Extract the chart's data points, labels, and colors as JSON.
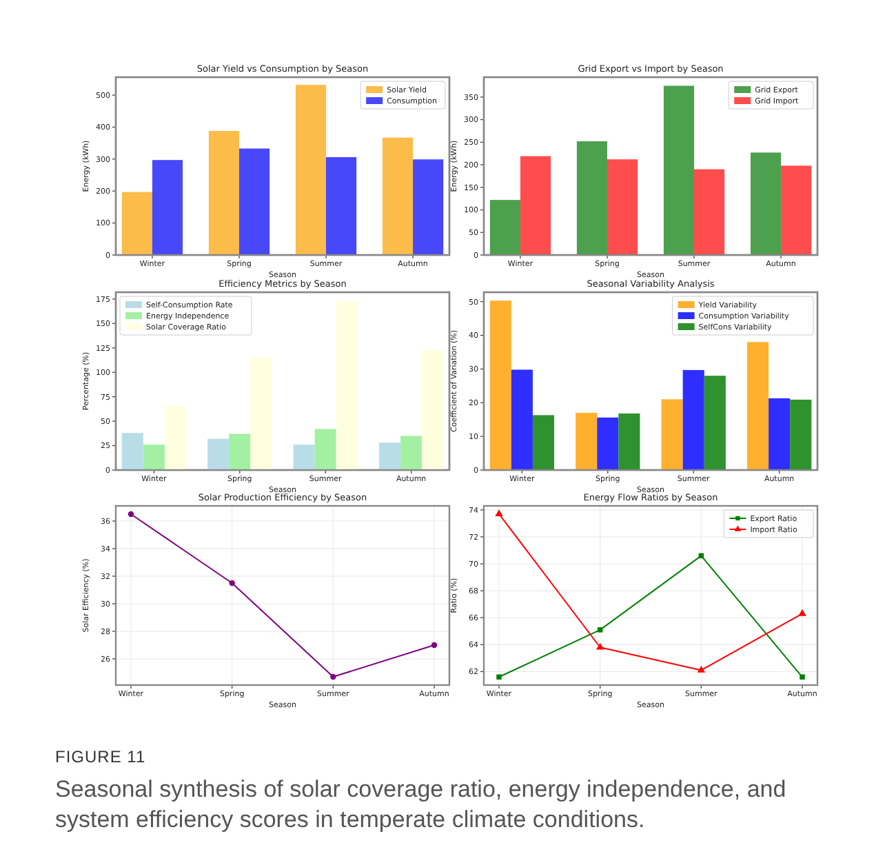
{
  "chart_data": [
    {
      "type": "bar",
      "title": "Solar Yield vs Consumption by Season",
      "xlabel": "Season",
      "ylabel": "Energy (kWh)",
      "categories": [
        "Winter",
        "Spring",
        "Summer",
        "Autumn"
      ],
      "ylim": [
        0,
        556
      ],
      "yticks": [
        0,
        100,
        200,
        300,
        400,
        500
      ],
      "legend": "top right",
      "series": [
        {
          "name": "Solar Yield",
          "color": "#fbbc4a",
          "values": [
            197,
            388,
            532,
            367
          ]
        },
        {
          "name": "Consumption",
          "color": "#4848fb",
          "values": [
            297,
            333,
            306,
            299
          ]
        }
      ]
    },
    {
      "type": "bar",
      "title": "Grid Export vs Import by Season",
      "xlabel": "Season",
      "ylabel": "Energy (kWh)",
      "categories": [
        "Winter",
        "Spring",
        "Summer",
        "Autumn"
      ],
      "ylim": [
        0,
        394
      ],
      "yticks": [
        0,
        50,
        100,
        150,
        200,
        250,
        300,
        350
      ],
      "legend": "top right",
      "series": [
        {
          "name": "Grid Export",
          "color": "#4da04d",
          "values": [
            122,
            252,
            375,
            227
          ]
        },
        {
          "name": "Grid Import",
          "color": "#ff4d4d",
          "values": [
            219,
            212,
            190,
            198
          ]
        }
      ]
    },
    {
      "type": "bar",
      "title": "Efficiency Metrics by Season",
      "xlabel": "Season",
      "ylabel": "Percentage (%)",
      "categories": [
        "Winter",
        "Spring",
        "Summer",
        "Autumn"
      ],
      "ylim": [
        0,
        182
      ],
      "yticks": [
        0,
        25,
        50,
        75,
        100,
        125,
        150,
        175
      ],
      "legend": "top left",
      "series": [
        {
          "name": "Self-Consumption Rate",
          "color": "#b9dde8",
          "values": [
            38,
            32,
            26,
            28
          ]
        },
        {
          "name": "Energy Independence",
          "color": "#a3f0a3",
          "values": [
            26,
            37,
            42,
            35
          ]
        },
        {
          "name": "Solar Coverage Ratio",
          "color": "#ffffe0",
          "values": [
            66,
            115,
            173,
            123
          ]
        }
      ]
    },
    {
      "type": "bar",
      "title": "Seasonal Variability Analysis",
      "xlabel": "Season",
      "ylabel": "Coefficient of Variation (%)",
      "categories": [
        "Winter",
        "Spring",
        "Summer",
        "Autumn"
      ],
      "ylim": [
        0,
        52.8
      ],
      "yticks": [
        0,
        10,
        20,
        30,
        40,
        50
      ],
      "legend": "top right",
      "series": [
        {
          "name": "Yield Variability",
          "color": "#ffb02e",
          "values": [
            50.3,
            17,
            21,
            38
          ]
        },
        {
          "name": "Consumption Variability",
          "color": "#2e2eff",
          "values": [
            29.8,
            15.6,
            29.7,
            21.3
          ]
        },
        {
          "name": "SelfCons Variability",
          "color": "#2e922e",
          "values": [
            16.3,
            16.8,
            28,
            20.9
          ]
        }
      ]
    },
    {
      "type": "line",
      "title": "Solar Production Efficiency by Season",
      "xlabel": "Season",
      "ylabel": "Solar Efficiency (%)",
      "categories": [
        "Winter",
        "Spring",
        "Summer",
        "Autumn"
      ],
      "ylim": [
        24.1,
        37.1
      ],
      "yticks": [
        26,
        28,
        30,
        32,
        34,
        36
      ],
      "grid": true,
      "marker": "circle",
      "line_style": "solid",
      "series": [
        {
          "color": "#800080",
          "values": [
            36.5,
            31.5,
            24.7,
            27
          ]
        }
      ]
    },
    {
      "type": "line",
      "title": "Energy Flow Ratios by Season",
      "xlabel": "Season",
      "ylabel": "Ratio (%)",
      "categories": [
        "Winter",
        "Spring",
        "Summer",
        "Autumn"
      ],
      "ylim": [
        61,
        74.3
      ],
      "yticks": [
        62,
        64,
        66,
        68,
        70,
        72,
        74
      ],
      "grid": true,
      "legend": "top right",
      "line_style": "solid",
      "series": [
        {
          "name": "Export Ratio",
          "color": "#008000",
          "marker": "square",
          "values": [
            61.6,
            65.1,
            70.6,
            61.6
          ]
        },
        {
          "name": "Import Ratio",
          "color": "#ff0000",
          "marker": "triangle",
          "values": [
            73.7,
            63.8,
            62.1,
            66.3
          ]
        }
      ]
    },
    {
      "type": "other",
      "title": "FIGURE 11",
      "annotations": [
        "Seasonal synthesis of solar coverage ratio, energy independence, and system efficiency scores in temperate climate conditions."
      ]
    }
  ]
}
